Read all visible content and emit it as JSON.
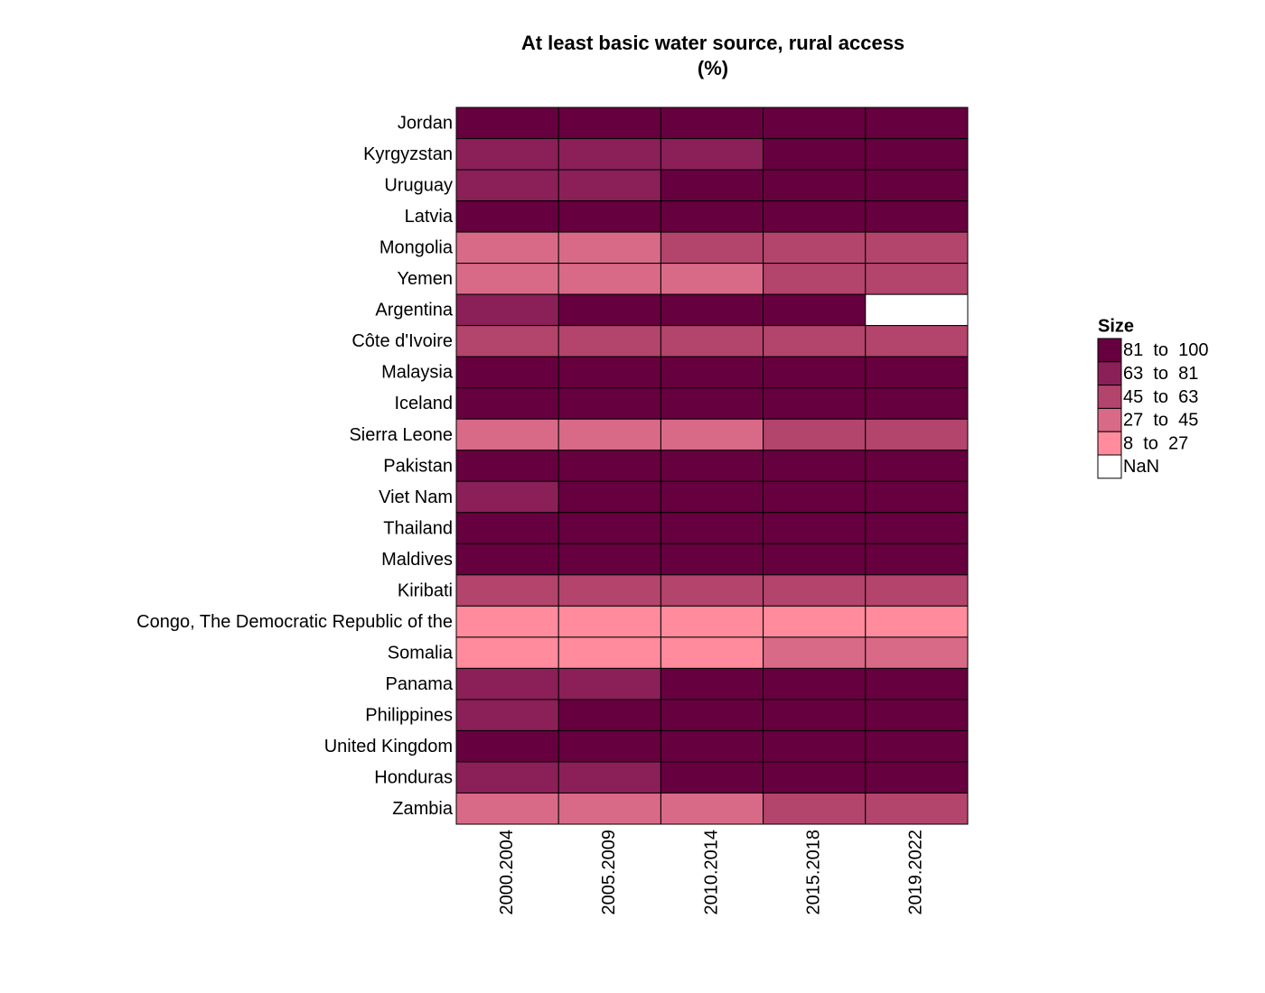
{
  "chart_data": {
    "type": "heatmap",
    "title_lines": [
      "At least basic water source, rural access",
      "(%)"
    ],
    "categories": [
      "2000.2004",
      "2005.2009",
      "2010.2014",
      "2015.2018",
      "2019.2022"
    ],
    "rows": [
      "Jordan",
      "Kyrgyzstan",
      "Uruguay",
      "Latvia",
      "Mongolia",
      "Yemen",
      "Argentina",
      "Côte d'Ivoire",
      "Malaysia",
      "Iceland",
      "Sierra Leone",
      "Pakistan",
      "Viet Nam",
      "Thailand",
      "Maldives",
      "Kiribati",
      "Congo, The Democratic Republic of the",
      "Somalia",
      "Panama",
      "Philippines",
      "United Kingdom",
      "Honduras",
      "Zambia"
    ],
    "values": [
      [
        99,
        99,
        99,
        99,
        99
      ],
      [
        75,
        78,
        80,
        88,
        90
      ],
      [
        78,
        80,
        93,
        94,
        94
      ],
      [
        97,
        98,
        98,
        98,
        98
      ],
      [
        40,
        42,
        50,
        54,
        56
      ],
      [
        40,
        42,
        44,
        48,
        50
      ],
      [
        78,
        88,
        95,
        97,
        null
      ],
      [
        55,
        57,
        58,
        59,
        60
      ],
      [
        88,
        90,
        92,
        93,
        93
      ],
      [
        100,
        100,
        100,
        100,
        100
      ],
      [
        35,
        40,
        44,
        50,
        54
      ],
      [
        87,
        88,
        89,
        90,
        91
      ],
      [
        77,
        83,
        89,
        93,
        95
      ],
      [
        96,
        98,
        99,
        99,
        99
      ],
      [
        95,
        96,
        97,
        98,
        98
      ],
      [
        48,
        50,
        52,
        53,
        54
      ],
      [
        20,
        21,
        22,
        22,
        22
      ],
      [
        10,
        14,
        18,
        30,
        33
      ],
      [
        74,
        78,
        82,
        84,
        85
      ],
      [
        80,
        84,
        87,
        89,
        90
      ],
      [
        100,
        100,
        100,
        100,
        100
      ],
      [
        70,
        76,
        83,
        86,
        88
      ],
      [
        40,
        42,
        44,
        46,
        48
      ]
    ],
    "bins": [
      8,
      27,
      45,
      63,
      81,
      100
    ],
    "legend": {
      "title": "Size",
      "entries": [
        {
          "label": "81  to  100",
          "color": "#67003f"
        },
        {
          "label": "63  to  81",
          "color": "#8b1f58"
        },
        {
          "label": "45  to  63",
          "color": "#b3446c"
        },
        {
          "label": "27  to  45",
          "color": "#d86a88"
        },
        {
          "label": "8  to  27",
          "color": "#ff8b9c"
        }
      ],
      "na": {
        "label": "NaN",
        "color": "#ffffff"
      }
    }
  }
}
